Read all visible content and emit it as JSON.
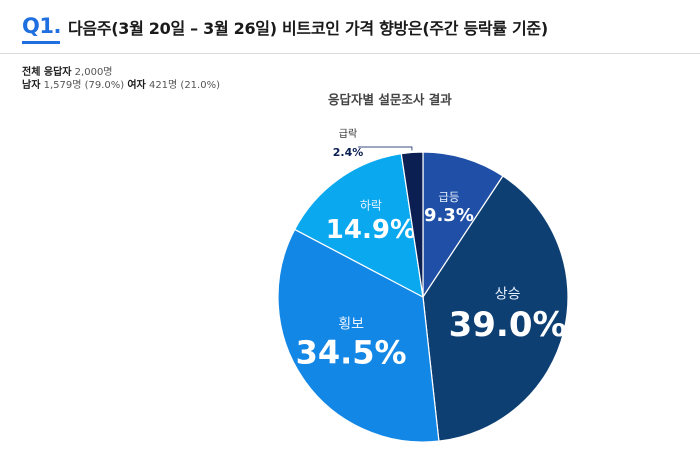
{
  "header": {
    "question_number": "Q1.",
    "question_title": "다음주(3월 20일 – 3월 26일)  비트코인 가격 향방은(주간 등락률 기준)"
  },
  "respondents": {
    "total_label": "전체 응답자",
    "total_value": "2,000명",
    "male_label": "남자",
    "male_value": "1,579명 (79.0%)",
    "female_label": "여자",
    "female_value": "421명 (21.0%)"
  },
  "chart_data": {
    "type": "pie",
    "title": "응답자별 설문조사 결과",
    "unit": "%",
    "categories": [
      "급등",
      "상승",
      "횡보",
      "하락",
      "급락"
    ],
    "values": [
      9.3,
      39.0,
      34.5,
      14.9,
      2.4
    ],
    "value_labels": [
      "9.3%",
      "39.0%",
      "34.5%",
      "14.9%",
      "2.4%"
    ],
    "colors": [
      "#1f4fa6",
      "#0d3f73",
      "#1387e6",
      "#0aa8ef",
      "#0b1f52"
    ],
    "start": "12 o'clock, clockwise",
    "legend": "none (labels on slices)"
  }
}
